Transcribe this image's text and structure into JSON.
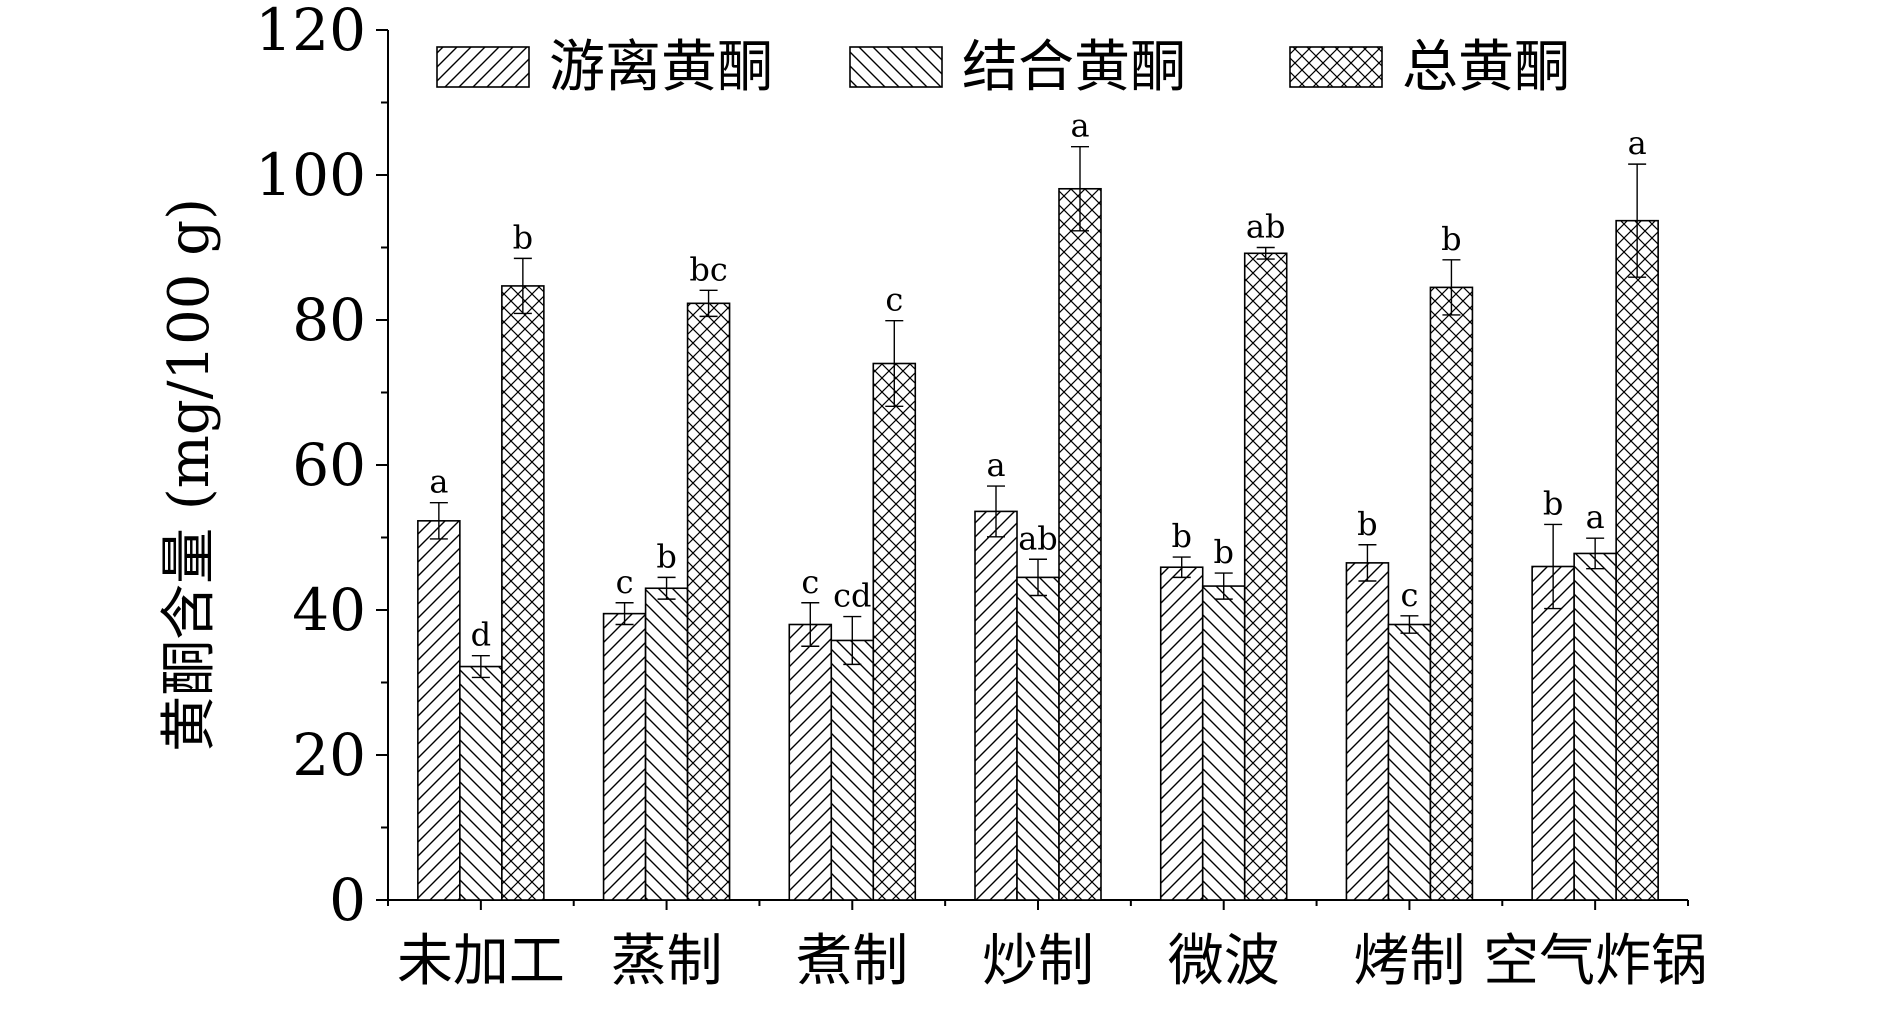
{
  "chart_data": {
    "type": "bar",
    "ylabel": "黄酮含量 (mg/100 g)",
    "xlabel": "",
    "ylim": [
      0,
      120
    ],
    "yticks": [
      0,
      20,
      40,
      60,
      80,
      100,
      120
    ],
    "categories": [
      "未加工",
      "蒸制",
      "煮制",
      "炒制",
      "微波",
      "烤制",
      "空气炸锅"
    ],
    "legend_position": "top",
    "series": [
      {
        "name": "游离黄酮",
        "pattern": "diagonal-forward",
        "values": [
          52.3,
          39.5,
          38.0,
          53.6,
          45.9,
          46.5,
          46.0
        ],
        "errors": [
          2.5,
          1.5,
          3.0,
          3.5,
          1.4,
          2.5,
          5.8
        ],
        "letters": [
          "a",
          "c",
          "c",
          "a",
          "b",
          "b",
          "b"
        ]
      },
      {
        "name": "结合黄酮",
        "pattern": "diagonal-backward",
        "values": [
          32.2,
          43.0,
          35.8,
          44.5,
          43.3,
          38.0,
          47.8
        ],
        "errors": [
          1.5,
          1.5,
          3.3,
          2.5,
          1.8,
          1.2,
          2.1
        ],
        "letters": [
          "d",
          "b",
          "cd",
          "ab",
          "b",
          "c",
          "a"
        ]
      },
      {
        "name": "总黄酮",
        "pattern": "crosshatch",
        "values": [
          84.7,
          82.3,
          74.0,
          98.1,
          89.2,
          84.5,
          93.7
        ],
        "errors": [
          3.8,
          1.8,
          5.9,
          5.8,
          0.8,
          3.8,
          7.8
        ],
        "letters": [
          "b",
          "bc",
          "c",
          "a",
          "ab",
          "b",
          "a"
        ]
      }
    ]
  }
}
